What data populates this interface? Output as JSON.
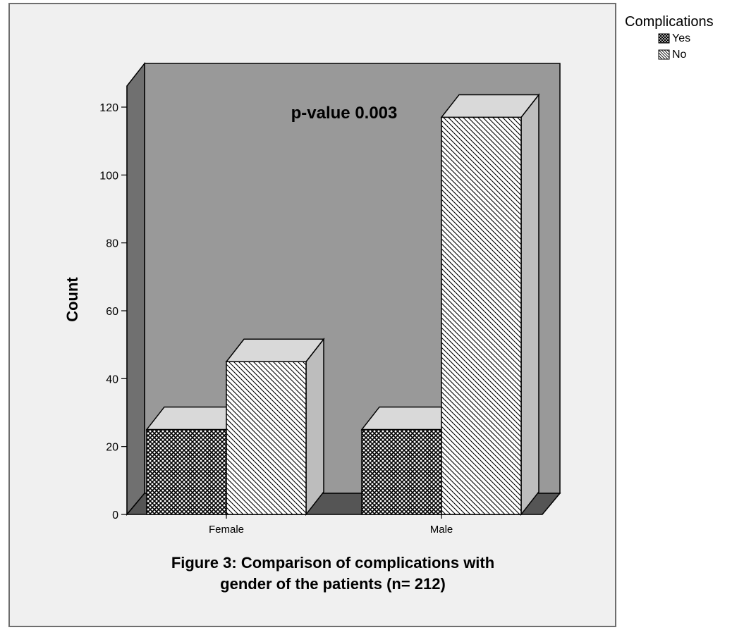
{
  "chart_data": {
    "type": "bar",
    "style": "3d",
    "categories": [
      "Female",
      "Male"
    ],
    "series": [
      {
        "name": "Yes",
        "values": [
          25,
          25
        ],
        "pattern": "crosshatch"
      },
      {
        "name": "No",
        "values": [
          45,
          117
        ],
        "pattern": "diagonal-hatch"
      }
    ],
    "ylabel": "Count",
    "xlabel": "",
    "ylim": [
      0,
      120
    ],
    "yticks": [
      0,
      20,
      40,
      60,
      80,
      100,
      120
    ],
    "annotation": "p-value 0.003",
    "caption_line1": "Figure 3: Comparison of complications with",
    "caption_line2": "gender of the patients (n= 212)",
    "grid": false,
    "legend": {
      "title": "Complications",
      "placement": "top-right",
      "items": [
        "Yes",
        "No"
      ]
    },
    "colors": {
      "plot_wall": "#999999",
      "plot_floor": "#555555",
      "frame_bg": "#f0f0f0",
      "bar_face": "#ffffff",
      "bar_top": "#d9d9d9",
      "bar_side": "#bdbdbd"
    }
  }
}
